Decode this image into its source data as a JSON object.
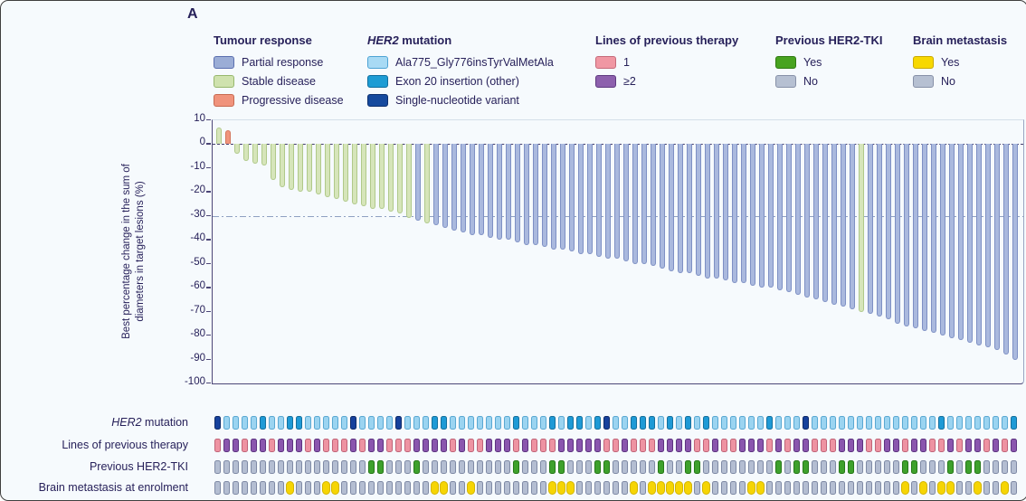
{
  "panel_label": "A",
  "legend": {
    "groups": [
      {
        "title": "Tumour response",
        "x": 235,
        "items": [
          {
            "label": "Partial response",
            "color": {
              "fill": "#9badd6",
              "border": "#5b6faf"
            }
          },
          {
            "label": "Stable disease",
            "color": {
              "fill": "#cfe2ae",
              "border": "#97b86d"
            }
          },
          {
            "label": "Progressive disease",
            "color": {
              "fill": "#f0937c",
              "border": "#c76a52"
            }
          }
        ]
      },
      {
        "title_italic": "HER2",
        "title": " mutation",
        "x": 405,
        "items": [
          {
            "label": "Ala775_Gly776insTyrValMetAla",
            "color": {
              "fill": "#a8daf4",
              "border": "#4da3d4"
            }
          },
          {
            "label": "Exon 20 insertion (other)",
            "color": {
              "fill": "#1d9cd4",
              "border": "#0f6e9e"
            }
          },
          {
            "label": "Single-nucleotide variant",
            "color": {
              "fill": "#164a9e",
              "border": "#0d2f6e"
            }
          }
        ]
      },
      {
        "title": "Lines of previous therapy",
        "x": 657,
        "items": [
          {
            "label": "1",
            "color": {
              "fill": "#f097a3",
              "border": "#c56a7a"
            }
          },
          {
            "label": "≥2",
            "color": {
              "fill": "#8d60ad",
              "border": "#5e3a80"
            }
          }
        ]
      },
      {
        "title": "Previous HER2-TKI",
        "x": 856,
        "items": [
          {
            "label": "Yes",
            "color": {
              "fill": "#48a31f",
              "border": "#2f7a12"
            }
          },
          {
            "label": "No",
            "color": {
              "fill": "#b6c0d2",
              "border": "#8791a8"
            }
          }
        ]
      },
      {
        "title": "Brain metastasis",
        "x": 1008,
        "items": [
          {
            "label": "Yes",
            "color": {
              "fill": "#f7d800",
              "border": "#c9a900"
            }
          },
          {
            "label": "No",
            "color": {
              "fill": "#b6c0d2",
              "border": "#8791a8"
            }
          }
        ]
      }
    ]
  },
  "chart_data": {
    "type": "bar",
    "subtype": "waterfall",
    "ylabel_line1": "Best percentage change in the sum of",
    "ylabel_line2": "diameters in target lesions (%)",
    "ylim": [
      -100,
      10
    ],
    "y_ticks": [
      10,
      0,
      -10,
      -20,
      -30,
      -40,
      -50,
      -60,
      -70,
      -80,
      -90,
      -100
    ],
    "reference_lines": [
      {
        "y": 0,
        "style": "dashed"
      },
      {
        "y": -30,
        "style": "dashdot"
      }
    ],
    "grid": false,
    "legend_position": "top",
    "values": [
      7,
      6,
      -4,
      -7,
      -8,
      -9,
      -15,
      -18,
      -19,
      -20,
      -20,
      -21,
      -22,
      -23,
      -24,
      -25,
      -26,
      -27,
      -27,
      -28,
      -29,
      -31,
      -32,
      -33,
      -34,
      -35,
      -36,
      -37,
      -38,
      -38,
      -39,
      -40,
      -40,
      -41,
      -42,
      -42,
      -43,
      -44,
      -44,
      -45,
      -46,
      -46,
      -47,
      -48,
      -48,
      -49,
      -50,
      -50,
      -51,
      -52,
      -53,
      -54,
      -54,
      -55,
      -56,
      -56,
      -57,
      -58,
      -58,
      -59,
      -60,
      -60,
      -61,
      -62,
      -63,
      -64,
      -65,
      -66,
      -67,
      -68,
      -69,
      -70,
      -71,
      -72,
      -73,
      -75,
      -76,
      -77,
      -78,
      -79,
      -80,
      -81,
      -82,
      -83,
      -84,
      -85,
      -86,
      -88,
      -90
    ],
    "response": "sdsssssssssssssssssssspspppppppppppppppppppppppppppppppppppppppppppppppsppppppppppppppppp",
    "response_legend": {
      "p": "Partial response",
      "s": "Stable disease",
      "d": "Progressive disease"
    },
    "category_colors": {
      "p": {
        "fill": "#aab9de",
        "border": "#7e90c4"
      },
      "s": {
        "fill": "#d6e5ba",
        "border": "#b0c98a"
      },
      "d": {
        "fill": "#f0947c",
        "border": "#d4755c"
      }
    },
    "tracks": [
      {
        "label_italic": "HER2",
        "label": " mutation",
        "cells": "DLLLLMLLMMLLLLLDLLLLDLLLMMLLLLLLLMLLLMLMMLMDLLMMMLMLMLMLLLLLLMLLLDLLLLLLLLLLLLLLMLLLLLLLM"
      },
      {
        "label": "Lines of previous therapy",
        "cells": "PUUPUUPUUUPUPPPUPUUPPPUUUUPUPPUUUPUPPPUUUUUPPUPPPUUUUPPUPPUUUPUPUUPPPUUUPPUUPUUPPUPUUPUPU"
      },
      {
        "label": "Previous HER2-TKI",
        "cells": "NNNNNNNNNNNNNNNNNGGNNNGNNNNNNNNNNGNNNGGNNNGGNNNNNGNNGGNNNNNNNNGNGGNNNGGNNNNNGGNNNGNGGNNNNN"
      },
      {
        "label": "Brain metastasis at enrolment",
        "cells": "NNNNNNNNYNNNYYNNNNNNNNNNYYNNYNNNNNNNNYYYNNNNNNYNYYYYYNYNNNNYYNNNNNNNNNNNNNNNYNYNYYNNYNNYNN"
      }
    ],
    "track_colors": {
      "L": {
        "fill": "#9bd4f1",
        "border": "#5aa8d2",
        "legend": "Ala775_Gly776insTyrValMetAla"
      },
      "M": {
        "fill": "#1e9ad6",
        "border": "#156f9c",
        "legend": "Exon 20 insertion (other)"
      },
      "D": {
        "fill": "#16419c",
        "border": "#0e2a68",
        "legend": "Single-nucleotide variant"
      },
      "P": {
        "fill": "#ee93a2",
        "border": "#c06478",
        "legend": "1 line of previous therapy"
      },
      "U": {
        "fill": "#8a56ae",
        "border": "#5d3380",
        "legend": "≥2 lines of previous therapy"
      },
      "N": {
        "fill": "#b4bed2",
        "border": "#7f8aa5",
        "legend": "No"
      },
      "G": {
        "fill": "#3ea12c",
        "border": "#267818",
        "legend": "Yes (previous HER2-TKI)"
      },
      "Y": {
        "fill": "#f6d504",
        "border": "#d4b500",
        "legend": "Yes (brain metastasis)"
      }
    }
  }
}
